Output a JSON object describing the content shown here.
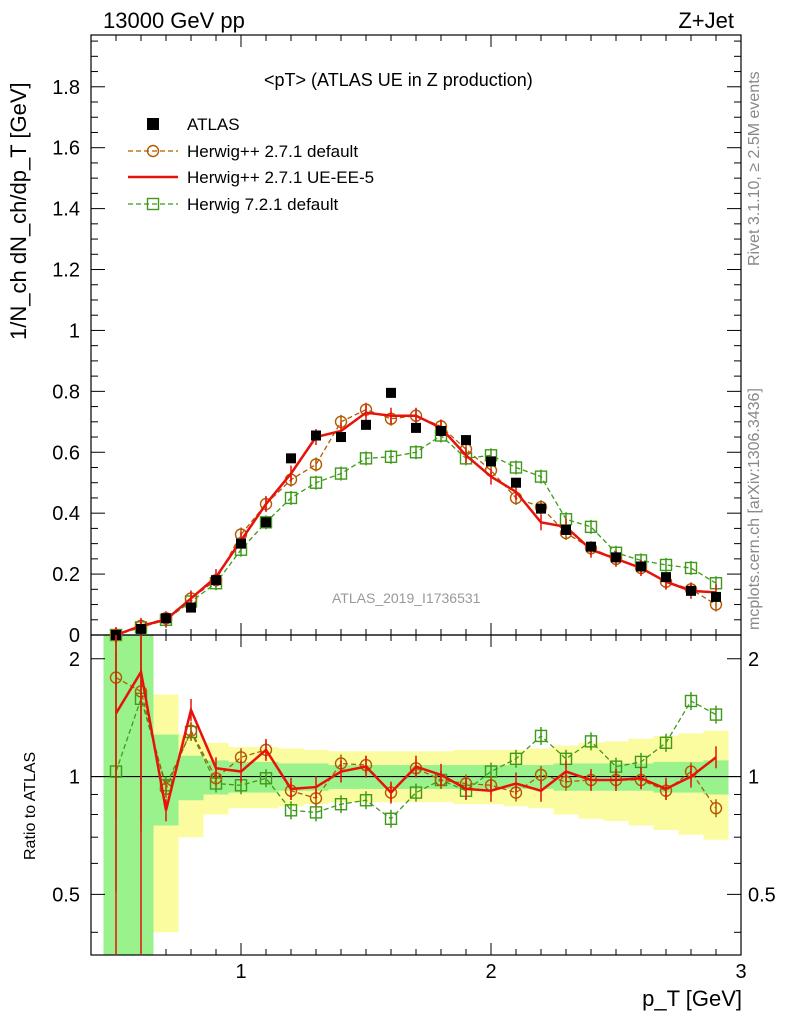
{
  "header": {
    "left": "13000 GeV pp",
    "right": "Z+Jet"
  },
  "side": {
    "rivet": "Rivet 3.1.10, ≥ 2.5M events",
    "mcplots": "mcplots.cern.ch [arXiv:1306.3436]"
  },
  "analysis_id": "ATLAS_2019_I1736531",
  "colors": {
    "atlas": "#000000",
    "h271": "#b35900",
    "ueee5": "#e8120c",
    "h721": "#3f9a19",
    "band_inner": "#99f28c",
    "band_outer": "#fbfba0"
  },
  "chart_data": [
    {
      "type": "scatter",
      "title": "<pT> (ATLAS UE in Z production)",
      "ylabel": "1/N_ch dN_ch/dp_T [GeV]",
      "xlim": [
        0.4,
        3.0
      ],
      "ylim": [
        0,
        1.97
      ],
      "yticks": [
        "0",
        "0.2",
        "0.4",
        "0.6",
        "0.8",
        "1",
        "1.2",
        "1.4",
        "1.6",
        "1.8"
      ],
      "legend": [
        "ATLAS",
        "Herwig++ 2.7.1 default",
        "Herwig++ 2.7.1 UE-EE-5",
        "Herwig 7.2.1 default"
      ],
      "x": [
        0.5,
        0.6,
        0.7,
        0.8,
        0.9,
        1.0,
        1.1,
        1.2,
        1.3,
        1.4,
        1.5,
        1.6,
        1.7,
        1.8,
        1.9,
        2.0,
        2.1,
        2.2,
        2.3,
        2.4,
        2.5,
        2.6,
        2.7,
        2.8,
        2.9
      ],
      "series": [
        {
          "name": "ATLAS",
          "values": [
            0.0,
            0.02,
            0.055,
            0.09,
            0.18,
            0.3,
            0.37,
            0.58,
            0.655,
            0.65,
            0.69,
            0.795,
            0.68,
            0.67,
            0.64,
            0.57,
            0.5,
            0.415,
            0.345,
            0.29,
            0.255,
            0.225,
            0.19,
            0.145,
            0.125
          ]
        },
        {
          "name": "Herwig++ 2.7.1 default",
          "values": [
            0.0,
            0.03,
            0.055,
            0.12,
            0.18,
            0.33,
            0.43,
            0.51,
            0.56,
            0.7,
            0.74,
            0.71,
            0.72,
            0.685,
            0.61,
            0.54,
            0.45,
            0.42,
            0.335,
            0.285,
            0.25,
            0.22,
            0.175,
            0.15,
            0.1
          ]
        },
        {
          "name": "Herwig++ 2.7.1 UE-EE-5",
          "values": [
            0.0,
            0.03,
            0.05,
            0.12,
            0.19,
            0.31,
            0.43,
            0.53,
            0.65,
            0.67,
            0.73,
            0.72,
            0.72,
            0.68,
            0.59,
            0.52,
            0.47,
            0.37,
            0.355,
            0.28,
            0.25,
            0.22,
            0.175,
            0.145,
            0.14
          ]
        },
        {
          "name": "Herwig 7.2.1 default",
          "values": [
            0.0,
            0.025,
            0.05,
            0.11,
            0.17,
            0.28,
            0.37,
            0.45,
            0.5,
            0.53,
            0.58,
            0.585,
            0.6,
            0.655,
            0.58,
            0.59,
            0.55,
            0.52,
            0.38,
            0.355,
            0.27,
            0.245,
            0.23,
            0.22,
            0.17
          ]
        }
      ]
    },
    {
      "type": "scatter",
      "ylabel": "Ratio to ATLAS",
      "xlabel": "p_T [GeV]",
      "xlim": [
        0.4,
        3.0
      ],
      "ylim": [
        0.35,
        2.3
      ],
      "log_y": true,
      "yticks": [
        "0.5",
        "1",
        "2"
      ],
      "xticks": [
        "1",
        "2",
        "3"
      ],
      "x": [
        0.5,
        0.6,
        0.7,
        0.8,
        0.9,
        1.0,
        1.1,
        1.2,
        1.3,
        1.4,
        1.5,
        1.6,
        1.7,
        1.8,
        1.9,
        2.0,
        2.1,
        2.2,
        2.3,
        2.4,
        2.5,
        2.6,
        2.7,
        2.8,
        2.9
      ],
      "band_inner": [
        3.5,
        3.5,
        1.28,
        1.13,
        1.1,
        1.09,
        1.09,
        1.08,
        1.08,
        1.07,
        1.07,
        1.07,
        1.07,
        1.07,
        1.07,
        1.07,
        1.07,
        1.07,
        1.08,
        1.08,
        1.08,
        1.08,
        1.09,
        1.09,
        1.1
      ],
      "band_inner_lo": [
        0.3,
        0.3,
        0.75,
        0.87,
        0.9,
        0.91,
        0.91,
        0.92,
        0.92,
        0.93,
        0.93,
        0.93,
        0.93,
        0.93,
        0.93,
        0.93,
        0.93,
        0.93,
        0.92,
        0.92,
        0.92,
        0.92,
        0.91,
        0.91,
        0.9
      ],
      "band_outer": [
        3.5,
        3.5,
        1.62,
        1.28,
        1.22,
        1.19,
        1.19,
        1.18,
        1.17,
        1.16,
        1.16,
        1.16,
        1.16,
        1.16,
        1.17,
        1.17,
        1.17,
        1.18,
        1.2,
        1.22,
        1.23,
        1.25,
        1.27,
        1.29,
        1.31
      ],
      "band_outer_lo": [
        0.3,
        0.3,
        0.4,
        0.7,
        0.8,
        0.83,
        0.83,
        0.84,
        0.85,
        0.86,
        0.86,
        0.86,
        0.86,
        0.86,
        0.85,
        0.85,
        0.84,
        0.83,
        0.8,
        0.78,
        0.77,
        0.75,
        0.73,
        0.71,
        0.69
      ],
      "series": [
        {
          "name": "Herwig++ 2.7.1 default",
          "values": [
            1.79,
            1.65,
            0.93,
            1.31,
            0.99,
            1.12,
            1.17,
            0.92,
            0.88,
            1.08,
            1.07,
            0.91,
            1.05,
            0.98,
            0.96,
            0.95,
            0.91,
            1.01,
            0.97,
            0.98,
            0.98,
            0.98,
            0.92,
            1.03,
            0.83
          ]
        },
        {
          "name": "Herwig++ 2.7.1 UE-EE-5",
          "values": [
            1.45,
            1.85,
            0.82,
            1.48,
            1.05,
            1.03,
            1.17,
            0.93,
            0.94,
            1.03,
            1.06,
            0.91,
            1.06,
            1.01,
            0.93,
            0.92,
            0.96,
            0.92,
            1.03,
            0.98,
            0.98,
            0.99,
            0.93,
            1.0,
            1.12
          ]
        },
        {
          "name": "Herwig 7.2.1 default",
          "values": [
            1.03,
            1.58,
            0.95,
            1.3,
            0.96,
            0.95,
            0.99,
            0.82,
            0.81,
            0.85,
            0.87,
            0.78,
            0.91,
            0.98,
            0.92,
            1.03,
            1.11,
            1.27,
            1.11,
            1.23,
            1.06,
            1.09,
            1.22,
            1.56,
            1.44
          ]
        }
      ]
    }
  ]
}
